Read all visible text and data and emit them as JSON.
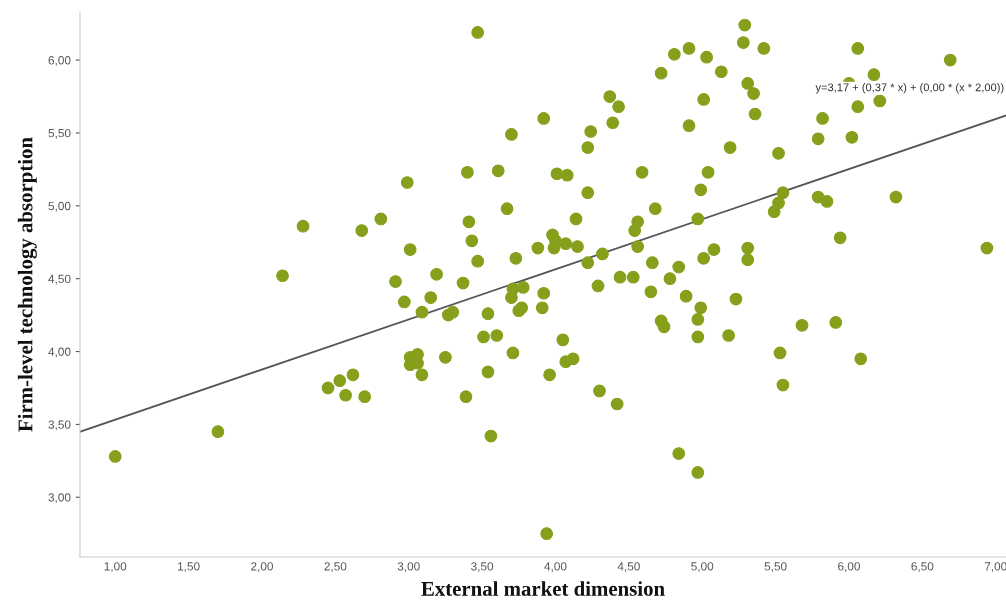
{
  "chart_data": {
    "type": "scatter",
    "xlabel": "External market dimension",
    "ylabel": "Firm-level technology absorption",
    "xlim": [
      0.76,
      7.07
    ],
    "ylim": [
      2.59,
      6.33
    ],
    "xticks": [
      {
        "value": 1,
        "label": "1,00"
      },
      {
        "value": 1.5,
        "label": "1,50"
      },
      {
        "value": 2,
        "label": "2,00"
      },
      {
        "value": 2.5,
        "label": "2,50"
      },
      {
        "value": 3,
        "label": "3,00"
      },
      {
        "value": 3.5,
        "label": "3,50"
      },
      {
        "value": 4,
        "label": "4,00"
      },
      {
        "value": 4.5,
        "label": "4,50"
      },
      {
        "value": 5,
        "label": "5,00"
      },
      {
        "value": 5.5,
        "label": "5,50"
      },
      {
        "value": 6,
        "label": "6,00"
      },
      {
        "value": 6.5,
        "label": "6,50"
      },
      {
        "value": 7,
        "label": "7,00"
      }
    ],
    "yticks": [
      {
        "value": 3,
        "label": "3,00"
      },
      {
        "value": 3.5,
        "label": "3,50"
      },
      {
        "value": 4,
        "label": "4,00"
      },
      {
        "value": 4.5,
        "label": "4,50"
      },
      {
        "value": 5,
        "label": "5,00"
      },
      {
        "value": 5.5,
        "label": "5,50"
      },
      {
        "value": 6,
        "label": "6,00"
      }
    ],
    "grid": false,
    "legend": false,
    "annotations": [
      "y=3,17 + (0,37 * x) + (0,00 * (x * 2,00))"
    ],
    "series": [
      {
        "color": "#86a01c",
        "marker": "circle",
        "x": [
          3.47,
          3.7,
          3.4,
          3.61,
          2.99,
          3.67,
          2.28,
          2.68,
          2.81,
          3.41,
          3.43,
          3.01,
          3.47,
          3.73,
          2.14,
          2.91,
          3.19,
          3.37,
          2.97,
          3.15,
          3.09,
          3.27,
          3.3,
          3.54,
          3.75,
          5.29,
          5.28,
          5.42,
          4.81,
          4.91,
          5.03,
          4.72,
          5.13,
          6.06,
          6.69,
          6.17,
          5.31,
          5.35,
          6.0,
          6.06,
          6.21,
          5.01,
          4.37,
          4.43,
          4.39,
          3.92,
          4.24,
          4.22,
          4.91,
          5.36,
          5.82,
          5.79,
          6.02,
          5.19,
          5.52,
          4.01,
          4.08,
          4.59,
          5.04,
          4.99,
          4.22,
          5.55,
          5.52,
          5.49,
          5.79,
          5.85,
          6.32,
          4.68,
          4.14,
          4.97,
          4.56,
          4.54,
          5.94,
          6.94,
          3.98,
          4.0,
          3.99,
          4.07,
          4.15,
          3.88,
          4.32,
          4.56,
          5.08,
          5.31,
          5.31,
          5.01,
          4.22,
          4.66,
          4.84,
          4.78,
          4.44,
          4.53,
          4.29,
          4.65,
          4.89,
          5.23,
          4.99,
          4.97,
          3.71,
          3.78,
          3.7,
          3.92,
          3.91,
          3.77,
          4.72,
          4.74,
          5.68,
          5.91,
          3.51,
          3.6,
          3.71,
          3.01,
          3.06,
          3.01,
          3.06,
          3.25,
          3.09,
          3.54,
          2.45,
          2.53,
          2.62,
          2.57,
          2.7,
          3.39,
          3.56,
          1.7,
          1.0,
          4.05,
          4.07,
          4.12,
          3.96,
          4.3,
          4.42,
          4.84,
          4.97,
          3.94,
          4.97,
          5.18,
          5.53,
          5.55,
          6.08
        ],
        "values": [
          6.19,
          5.49,
          5.23,
          5.24,
          5.16,
          4.98,
          4.86,
          4.83,
          4.91,
          4.89,
          4.76,
          4.7,
          4.62,
          4.64,
          4.52,
          4.48,
          4.53,
          4.47,
          4.34,
          4.37,
          4.27,
          4.25,
          4.27,
          4.26,
          4.28,
          6.24,
          6.12,
          6.08,
          6.04,
          6.08,
          6.02,
          5.91,
          5.92,
          6.08,
          6.0,
          5.9,
          5.84,
          5.77,
          5.84,
          5.68,
          5.72,
          5.73,
          5.75,
          5.68,
          5.57,
          5.6,
          5.51,
          5.4,
          5.55,
          5.63,
          5.6,
          5.46,
          5.47,
          5.4,
          5.36,
          5.22,
          5.21,
          5.23,
          5.23,
          5.11,
          5.09,
          5.09,
          5.02,
          4.96,
          5.06,
          5.03,
          5.06,
          4.98,
          4.91,
          4.91,
          4.89,
          4.83,
          4.78,
          4.71,
          4.8,
          4.76,
          4.71,
          4.74,
          4.72,
          4.71,
          4.67,
          4.72,
          4.7,
          4.71,
          4.63,
          4.64,
          4.61,
          4.61,
          4.58,
          4.5,
          4.51,
          4.51,
          4.45,
          4.41,
          4.38,
          4.36,
          4.3,
          4.22,
          4.43,
          4.44,
          4.37,
          4.4,
          4.3,
          4.3,
          4.21,
          4.17,
          4.18,
          4.2,
          4.1,
          4.11,
          3.99,
          3.96,
          3.98,
          3.91,
          3.92,
          3.96,
          3.84,
          3.86,
          3.75,
          3.8,
          3.84,
          3.7,
          3.69,
          3.69,
          3.42,
          3.45,
          3.28,
          4.08,
          3.93,
          3.95,
          3.84,
          3.73,
          3.64,
          3.3,
          3.17,
          2.75,
          4.1,
          4.11,
          3.99,
          3.77,
          3.95
        ]
      },
      {
        "type": "line",
        "color": "#555555",
        "line_style": "solid",
        "marker": "none",
        "x": [
          0.76,
          7.07
        ],
        "values": [
          3.45,
          5.62
        ]
      }
    ]
  }
}
